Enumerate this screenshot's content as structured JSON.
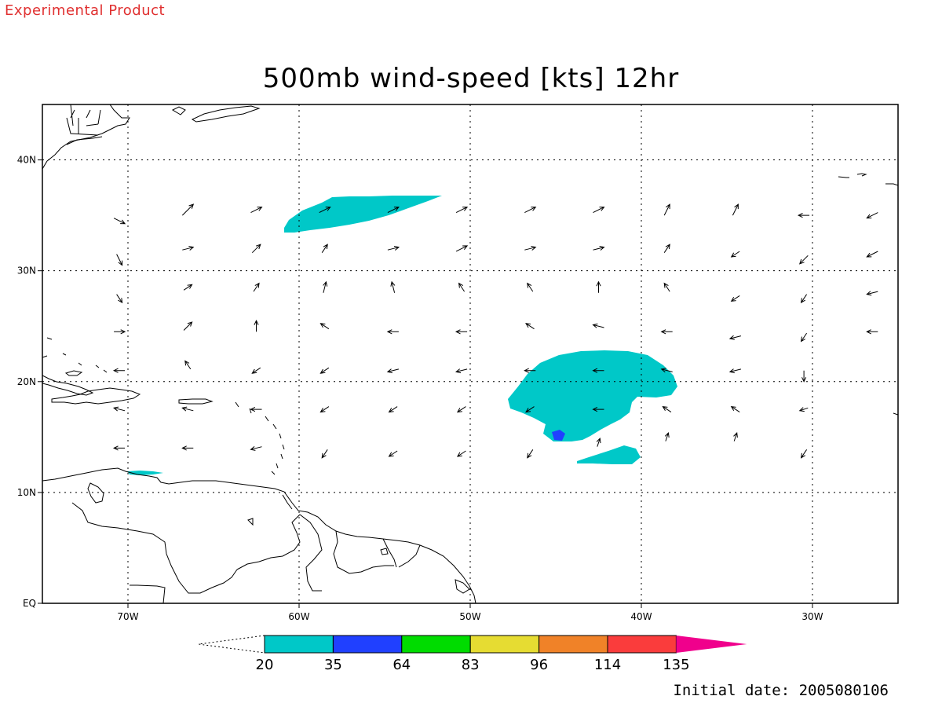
{
  "header": {
    "experimental_label": "Experimental Product",
    "title": "500mb wind-speed [kts] 12hr",
    "initial_date": "Initial date: 2005080106"
  },
  "map": {
    "lon_range": [
      -75,
      -25
    ],
    "lat_range": [
      0,
      45
    ],
    "lon_ticks": [
      {
        "value": -70,
        "label": "70W"
      },
      {
        "value": -60,
        "label": "60W"
      },
      {
        "value": -50,
        "label": "50W"
      },
      {
        "value": -40,
        "label": "40W"
      },
      {
        "value": -30,
        "label": "30W"
      }
    ],
    "lat_ticks": [
      {
        "value": 0,
        "label": "EQ"
      },
      {
        "value": 10,
        "label": "10N"
      },
      {
        "value": 20,
        "label": "20N"
      },
      {
        "value": 30,
        "label": "30N"
      },
      {
        "value": 40,
        "label": "40N"
      }
    ],
    "grid": "dotted",
    "colorbar": {
      "levels": [
        "20",
        "35",
        "64",
        "83",
        "96",
        "114",
        "135"
      ],
      "colors": [
        "#00c8c8",
        "#2040ff",
        "#00dc00",
        "#e6dc32",
        "#f08228",
        "#fa3c3c",
        "#f0008c"
      ]
    },
    "wind_regions": [
      {
        "name": "north-jet",
        "level": "20",
        "color": "#00c8c8"
      },
      {
        "name": "storm-core",
        "level": "20",
        "color": "#00c8c8"
      },
      {
        "name": "storm-south-lobe",
        "level": "20",
        "color": "#00c8c8"
      },
      {
        "name": "storm-max",
        "level": "35",
        "color": "#2040ff"
      },
      {
        "name": "caribbean-patch",
        "level": "20",
        "color": "#00c8c8"
      }
    ],
    "wind_vectors": [
      [
        -70.5,
        34.5,
        2,
        -1
      ],
      [
        -66.5,
        35.5,
        2,
        2
      ],
      [
        -62.5,
        35.5,
        2,
        1
      ],
      [
        -58.5,
        35.5,
        2,
        1
      ],
      [
        -54.5,
        35.5,
        2,
        1
      ],
      [
        -50.5,
        35.5,
        2,
        1
      ],
      [
        -46.5,
        35.5,
        2,
        1
      ],
      [
        -42.5,
        35.5,
        2,
        1
      ],
      [
        -38.5,
        35.5,
        1,
        2
      ],
      [
        -34.5,
        35.5,
        1,
        2
      ],
      [
        -30.5,
        35,
        -2,
        0
      ],
      [
        -26.5,
        35,
        -2,
        -1
      ],
      [
        -70.5,
        31,
        1,
        -2
      ],
      [
        -66.5,
        32,
        2,
        0.5
      ],
      [
        -62.5,
        32,
        1.5,
        1.5
      ],
      [
        -58.5,
        32,
        1,
        1.5
      ],
      [
        -54.5,
        32,
        2,
        0.5
      ],
      [
        -50.5,
        32,
        2,
        1
      ],
      [
        -46.5,
        32,
        2,
        0.5
      ],
      [
        -42.5,
        32,
        2,
        0.5
      ],
      [
        -38.5,
        32,
        1,
        1.5
      ],
      [
        -34.5,
        31.5,
        -1.5,
        -1
      ],
      [
        -30.5,
        31,
        -1.5,
        -1.5
      ],
      [
        -26.5,
        31.5,
        -2,
        -1
      ],
      [
        -70.5,
        27.5,
        1,
        -1.5
      ],
      [
        -66.5,
        28.5,
        1.5,
        1
      ],
      [
        -62.5,
        28.5,
        1,
        1.5
      ],
      [
        -58.5,
        28.5,
        0.5,
        2
      ],
      [
        -54.5,
        28.5,
        -0.5,
        2
      ],
      [
        -50.5,
        28.5,
        -1,
        1.5
      ],
      [
        -46.5,
        28.5,
        -1,
        1.5
      ],
      [
        -42.5,
        28.5,
        0,
        2
      ],
      [
        -38.5,
        28.5,
        -1,
        1.5
      ],
      [
        -34.5,
        27.5,
        -1.5,
        -1
      ],
      [
        -30.5,
        27.5,
        -1,
        -1.5
      ],
      [
        -26.5,
        28,
        -2,
        -0.5
      ],
      [
        -70.5,
        24.5,
        2,
        0
      ],
      [
        -66.5,
        25,
        1.5,
        1.5
      ],
      [
        -62.5,
        25,
        0,
        2
      ],
      [
        -58.5,
        25,
        -1.5,
        1
      ],
      [
        -54.5,
        24.5,
        -2,
        0
      ],
      [
        -50.5,
        24.5,
        -2,
        0
      ],
      [
        -46.5,
        25,
        -1.5,
        1
      ],
      [
        -42.5,
        25,
        -2,
        0.5
      ],
      [
        -38.5,
        24.5,
        -2,
        0
      ],
      [
        -34.5,
        24,
        -2,
        -0.5
      ],
      [
        -30.5,
        24,
        -1,
        -1.5
      ],
      [
        -26.5,
        24.5,
        -2,
        0
      ],
      [
        -70.5,
        21,
        -2,
        0
      ],
      [
        -66.5,
        21.5,
        -1,
        1.5
      ],
      [
        -62.5,
        21,
        -1.5,
        -1
      ],
      [
        -58.5,
        21,
        -1.5,
        -1
      ],
      [
        -54.5,
        21,
        -2,
        -0.5
      ],
      [
        -50.5,
        21,
        -2,
        -0.5
      ],
      [
        -46.5,
        21,
        -2,
        0
      ],
      [
        -42.5,
        21,
        -2,
        0
      ],
      [
        -38.5,
        21,
        -2,
        0.5
      ],
      [
        -34.5,
        21,
        -2,
        -0.5
      ],
      [
        -30.5,
        20.5,
        0,
        -2
      ],
      [
        -70.5,
        17.5,
        -2,
        0.5
      ],
      [
        -66.5,
        17.5,
        -2,
        0.5
      ],
      [
        -62.5,
        17.5,
        -2,
        0
      ],
      [
        -58.5,
        17.5,
        -1.5,
        -1
      ],
      [
        -54.5,
        17.5,
        -1.5,
        -1
      ],
      [
        -50.5,
        17.5,
        -1.5,
        -1
      ],
      [
        -46.5,
        17.5,
        -1.5,
        -1
      ],
      [
        -42.5,
        17.5,
        -2,
        0
      ],
      [
        -38.5,
        17.5,
        -1.5,
        1
      ],
      [
        -34.5,
        17.5,
        -1.5,
        1
      ],
      [
        -30.5,
        17.5,
        -1.5,
        -0.5
      ],
      [
        -70.5,
        14,
        -2,
        0
      ],
      [
        -66.5,
        14,
        -2,
        0
      ],
      [
        -62.5,
        14,
        -2,
        -0.5
      ],
      [
        -58.5,
        13.5,
        -1,
        -1.5
      ],
      [
        -54.5,
        13.5,
        -1.5,
        -1
      ],
      [
        -50.5,
        13.5,
        -1.5,
        -1
      ],
      [
        -46.5,
        13.5,
        -1,
        -1.5
      ],
      [
        -42.5,
        14.5,
        0.5,
        1.5
      ],
      [
        -38.5,
        15,
        0.5,
        1.5
      ],
      [
        -34.5,
        15,
        0.5,
        1.5
      ],
      [
        -30.5,
        13.5,
        -1,
        -1.5
      ]
    ]
  }
}
